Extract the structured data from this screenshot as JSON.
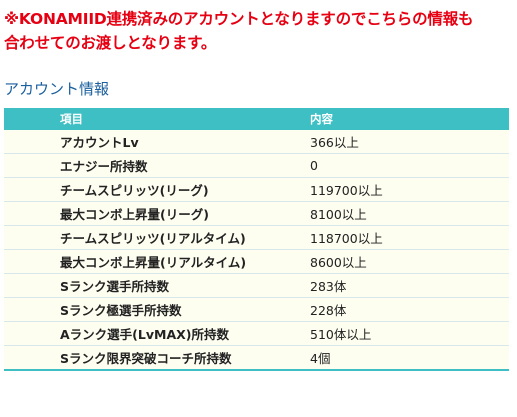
{
  "notice": {
    "line1": "※KONAMIID連携済みのアカウントとなりますのでこちらの情報も",
    "line2": "合わせてのお渡しとなります。"
  },
  "section_title": "アカウント情報",
  "table": {
    "headers": [
      "項目",
      "内容"
    ],
    "rows": [
      {
        "item": "アカウントLv",
        "value": "366以上"
      },
      {
        "item": "エナジー所持数",
        "value": "0"
      },
      {
        "item": "チームスピリッツ(リーグ)",
        "value": "119700以上"
      },
      {
        "item": "最大コンボ上昇量(リーグ)",
        "value": "8100以上"
      },
      {
        "item": "チームスピリッツ(リアルタイム)",
        "value": "118700以上"
      },
      {
        "item": "最大コンボ上昇量(リアルタイム)",
        "value": "8600以上"
      },
      {
        "item": "Sランク選手所持数",
        "value": "283体"
      },
      {
        "item": "Sランク極選手所持数",
        "value": "228体"
      },
      {
        "item": "Aランク選手(LvMAX)所持数",
        "value": "510体以上"
      },
      {
        "item": "Sランク限界突破コーチ所持数",
        "value": "4個"
      }
    ]
  },
  "colors": {
    "notice": "#e60012",
    "section_title": "#1a5f9e",
    "header_bg": "#3dbfc4",
    "row_bg": "#fdfdf0"
  }
}
